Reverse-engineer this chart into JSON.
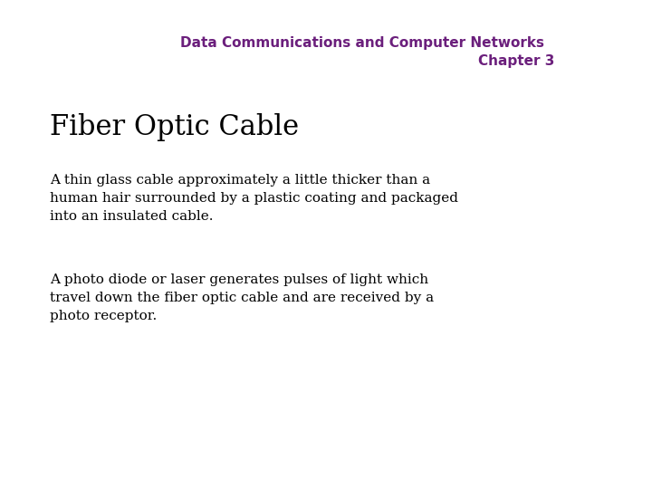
{
  "background_color": "#ffffff",
  "header_line1": "Data Communications and Computer Networks",
  "header_line2": "Chapter 3",
  "header_color": "#6B1F7C",
  "header_fontsize": 11,
  "title": "Fiber Optic Cable",
  "title_fontsize": 22,
  "title_color": "#000000",
  "title_font": "serif",
  "body_color": "#000000",
  "body_fontsize": 11,
  "body_font": "serif",
  "paragraph1": "A thin glass cable approximately a little thicker than a\nhuman hair surrounded by a plastic coating and packaged\ninto an insulated cable.",
  "paragraph2": "A photo diode or laser generates pulses of light which\ntravel down the fiber optic cable and are received by a\nphoto receptor."
}
